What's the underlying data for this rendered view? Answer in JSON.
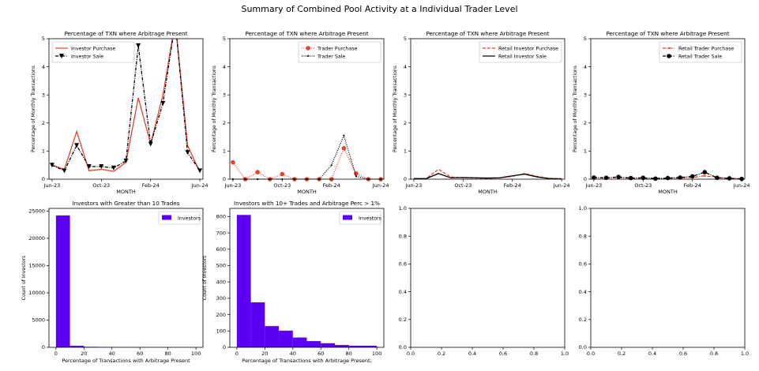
{
  "figure": {
    "title": "Summary of Combined Pool Activity at a Individual Trader Level"
  },
  "chart_data": [
    {
      "type": "line",
      "title": "Percentage of TXN where Arbitrage Present",
      "xlabel": "MONTH",
      "ylabel": "Percentage of Monthly Transactions",
      "ylim": [
        0,
        5
      ],
      "yticks": [
        0,
        1,
        2,
        3,
        4,
        5
      ],
      "x": [
        "2023-06",
        "2023-07",
        "2023-08",
        "2023-09",
        "2023-10",
        "2023-11",
        "2023-12",
        "2024-01",
        "2024-02",
        "2024-03",
        "2024-04",
        "2024-05",
        "2024-06"
      ],
      "xticks": [
        "Jun-23",
        "Oct-23",
        "Feb-24",
        "Jun-24"
      ],
      "legend_position": "top-left",
      "series": [
        {
          "name": "Investor Purchase",
          "color": "#e8412c",
          "style": "solid",
          "marker": "none",
          "values": [
            0.5,
            0.35,
            1.7,
            0.3,
            0.35,
            0.28,
            0.6,
            2.9,
            1.25,
            3.0,
            5.6,
            1.2,
            0.25
          ]
        },
        {
          "name": "Investor Sale",
          "color": "#000000",
          "style": "dashdot",
          "marker": "triangle-down",
          "values": [
            0.5,
            0.3,
            1.2,
            0.45,
            0.45,
            0.4,
            0.65,
            4.75,
            1.25,
            2.7,
            5.6,
            0.95,
            0.3
          ]
        }
      ]
    },
    {
      "type": "line",
      "title": "Percentage of TXN where Arbitrage Present",
      "xlabel": "MONTH",
      "ylabel": "Percentage of Monthly Transactions",
      "ylim": [
        0,
        5
      ],
      "yticks": [
        0,
        1,
        2,
        3,
        4,
        5
      ],
      "x": [
        "2023-06",
        "2023-07",
        "2023-08",
        "2023-09",
        "2023-10",
        "2023-11",
        "2023-12",
        "2024-01",
        "2024-02",
        "2024-03",
        "2024-04",
        "2024-05",
        "2024-06"
      ],
      "xticks": [
        "Jun-23",
        "Oct-23",
        "Feb-24",
        "Jun-24"
      ],
      "legend_position": "top-right",
      "series": [
        {
          "name": "Trader Purchase",
          "color": "#e8412c",
          "style": "dotted",
          "marker": "circle",
          "values": [
            0.6,
            0.0,
            0.25,
            0.0,
            0.18,
            0.0,
            0.0,
            0.0,
            0.0,
            1.1,
            0.2,
            0.0,
            0.0
          ]
        },
        {
          "name": "Trader Sale",
          "color": "#000000",
          "style": "dotted",
          "marker": "point",
          "values": [
            0.0,
            0.0,
            0.0,
            0.0,
            0.0,
            0.0,
            0.0,
            0.0,
            0.5,
            1.55,
            0.1,
            0.0,
            0.0
          ]
        }
      ]
    },
    {
      "type": "line",
      "title": "Percentage of TXN where Arbitrage Present",
      "xlabel": "MONTH",
      "ylabel": "Percentage of Monthly Transactions",
      "ylim": [
        0,
        5
      ],
      "yticks": [
        0,
        1,
        2,
        3,
        4,
        5
      ],
      "x": [
        "2023-06",
        "2023-07",
        "2023-08",
        "2023-09",
        "2023-10",
        "2023-11",
        "2023-12",
        "2024-01",
        "2024-02",
        "2024-03",
        "2024-04",
        "2024-05",
        "2024-06"
      ],
      "xticks": [
        "Jun-23",
        "Oct-23",
        "Feb-24",
        "Jun-24"
      ],
      "legend_position": "top-right",
      "series": [
        {
          "name": "Retail Investor Purchase",
          "color": "#e8412c",
          "style": "dashed",
          "marker": "none",
          "values": [
            0.02,
            0.02,
            0.35,
            0.08,
            0.05,
            0.04,
            0.03,
            0.05,
            0.1,
            0.2,
            0.1,
            0.03,
            0.02
          ]
        },
        {
          "name": "Retail Investor Sale",
          "color": "#000000",
          "style": "solid",
          "marker": "none",
          "values": [
            0.02,
            0.02,
            0.2,
            0.05,
            0.06,
            0.05,
            0.04,
            0.05,
            0.12,
            0.18,
            0.08,
            0.02,
            0.01
          ]
        }
      ]
    },
    {
      "type": "line",
      "title": "Percentage of TXN where Arbitrage Present",
      "xlabel": "MONTH",
      "ylabel": "Percentage of Monthly Transactions",
      "ylim": [
        0,
        5
      ],
      "yticks": [
        0,
        1,
        2,
        3,
        4,
        5
      ],
      "x": [
        "2023-06",
        "2023-07",
        "2023-08",
        "2023-09",
        "2023-10",
        "2023-11",
        "2023-12",
        "2024-01",
        "2024-02",
        "2024-03",
        "2024-04",
        "2024-05",
        "2024-06"
      ],
      "xticks": [
        "Jun-23",
        "Oct-23",
        "Feb-24",
        "Jun-24"
      ],
      "legend_position": "top-right",
      "series": [
        {
          "name": "Retail Trader Purchase",
          "color": "#e8412c",
          "style": "dashdot",
          "marker": "point",
          "values": [
            0.05,
            0.04,
            0.06,
            0.03,
            0.04,
            0.03,
            0.03,
            0.04,
            0.06,
            0.12,
            0.06,
            0.03,
            0.02
          ]
        },
        {
          "name": "Retail Trader Sale",
          "color": "#000000",
          "style": "dashdot",
          "marker": "circle",
          "values": [
            0.06,
            0.05,
            0.08,
            0.04,
            0.05,
            0.02,
            0.04,
            0.06,
            0.1,
            0.25,
            0.05,
            0.03,
            0.01
          ]
        }
      ]
    },
    {
      "type": "bar",
      "title": "Investors with Greater than 10 Trades",
      "xlabel": "Percentage of Transactions with Arbitrage Present",
      "ylabel": "Count of Investors",
      "xlim": [
        -5,
        105
      ],
      "ylim": [
        0,
        25500
      ],
      "xticks": [
        0,
        20,
        40,
        60,
        80,
        100
      ],
      "yticks": [
        0,
        5000,
        10000,
        15000,
        20000,
        25000
      ],
      "bin_edges": [
        0,
        10,
        20,
        30,
        40,
        50,
        60,
        70,
        80,
        90,
        100
      ],
      "color": "#5b00f2",
      "legend_position": "top-right",
      "series": [
        {
          "name": "Investors",
          "values": [
            24200,
            280,
            90,
            60,
            40,
            30,
            20,
            10,
            8,
            6
          ]
        }
      ]
    },
    {
      "type": "bar",
      "title": "Investors with 10+ Trades and Arbitrage Perc > 1%",
      "xlabel": "Percentage of Transactions with Arbitrage Present;",
      "ylabel": "Count of Investors",
      "xlim": [
        -5,
        105
      ],
      "ylim": [
        0,
        850
      ],
      "xticks": [
        0,
        20,
        40,
        60,
        80,
        100
      ],
      "yticks": [
        0,
        100,
        200,
        300,
        400,
        500,
        600,
        700,
        800
      ],
      "bin_edges": [
        0,
        10,
        20,
        30,
        40,
        50,
        60,
        70,
        80,
        90,
        100
      ],
      "color": "#5b00f2",
      "legend_position": "top-right",
      "series": [
        {
          "name": "Investors",
          "values": [
            810,
            275,
            130,
            102,
            60,
            38,
            25,
            14,
            10,
            10
          ]
        }
      ]
    },
    {
      "type": "scatter",
      "title": "",
      "xlim": [
        0,
        1
      ],
      "ylim": [
        0,
        1
      ],
      "xticks": [
        "0.0",
        "0.2",
        "0.4",
        "0.6",
        "0.8",
        "1.0"
      ],
      "yticks": [
        "0.0",
        "0.2",
        "0.4",
        "0.6",
        "0.8",
        "1.0"
      ],
      "series": []
    },
    {
      "type": "scatter",
      "title": "",
      "xlim": [
        0,
        1
      ],
      "ylim": [
        0,
        1
      ],
      "xticks": [
        "0.0",
        "0.2",
        "0.4",
        "0.6",
        "0.8",
        "1.0"
      ],
      "yticks": [
        "0.0",
        "0.2",
        "0.4",
        "0.6",
        "0.8",
        "1.0"
      ],
      "series": []
    }
  ]
}
